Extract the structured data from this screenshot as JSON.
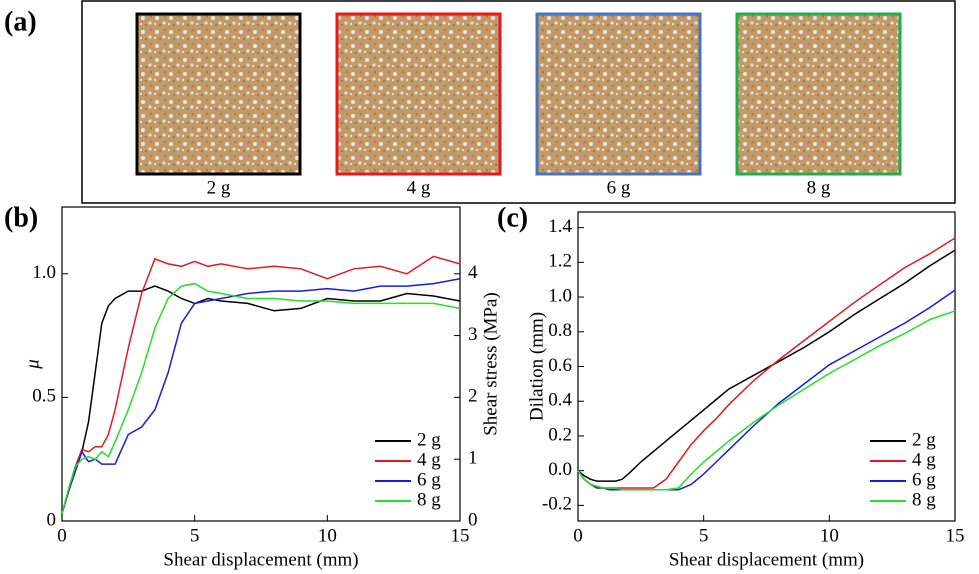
{
  "panel_a": {
    "panel_label": "(a)",
    "captions": [
      "2 g",
      "4 g",
      "6 g",
      "8 g"
    ],
    "colors": [
      "#000000",
      "#e8191d",
      "#4a72c0",
      "#1fae4a"
    ]
  },
  "chart_data": [
    {
      "type": "line",
      "panel_label": "(b)",
      "xlabel": "Shear displacement (mm)",
      "ylabel": "μ",
      "y2label": "Shear stress (MPa)",
      "xlim": [
        0,
        15
      ],
      "xticks": [
        0,
        5,
        10,
        15
      ],
      "ylim": [
        0,
        1.27
      ],
      "yticks": [
        0,
        0.5,
        {
          "value": 1,
          "label": "1.0"
        }
      ],
      "y2lim": [
        0,
        5.08
      ],
      "y2ticks": [
        0,
        1,
        2,
        3,
        4
      ],
      "legend": "lower right",
      "x": [
        0,
        0.25,
        0.5,
        0.75,
        1,
        1.25,
        1.5,
        1.75,
        2,
        2.5,
        3,
        3.5,
        4,
        4.5,
        5,
        5.5,
        6,
        7,
        8,
        9,
        10,
        11,
        12,
        13,
        14,
        15
      ],
      "series": [
        {
          "name": "2 g",
          "color": "#000000",
          "values": [
            0.03,
            0.12,
            0.22,
            0.28,
            0.4,
            0.6,
            0.8,
            0.87,
            0.9,
            0.93,
            0.93,
            0.95,
            0.93,
            0.9,
            0.88,
            0.9,
            0.89,
            0.88,
            0.85,
            0.86,
            0.9,
            0.89,
            0.89,
            0.92,
            0.91,
            0.89
          ]
        },
        {
          "name": "4 g",
          "color": "#e8191d",
          "values": [
            0.03,
            0.13,
            0.22,
            0.29,
            0.28,
            0.3,
            0.3,
            0.35,
            0.45,
            0.7,
            0.92,
            1.06,
            1.04,
            1.03,
            1.05,
            1.03,
            1.04,
            1.02,
            1.03,
            1.02,
            0.98,
            1.02,
            1.03,
            1.0,
            1.07,
            1.04
          ]
        },
        {
          "name": "6 g",
          "color": "#1a1ae6",
          "values": [
            0.03,
            0.12,
            0.2,
            0.28,
            0.24,
            0.25,
            0.23,
            0.23,
            0.23,
            0.35,
            0.38,
            0.45,
            0.6,
            0.8,
            0.88,
            0.89,
            0.9,
            0.92,
            0.93,
            0.93,
            0.94,
            0.93,
            0.95,
            0.95,
            0.96,
            0.98
          ]
        },
        {
          "name": "8 g",
          "color": "#22e022",
          "values": [
            0.03,
            0.13,
            0.22,
            0.25,
            0.26,
            0.25,
            0.28,
            0.26,
            0.32,
            0.45,
            0.6,
            0.78,
            0.9,
            0.95,
            0.96,
            0.93,
            0.92,
            0.9,
            0.9,
            0.89,
            0.89,
            0.88,
            0.88,
            0.88,
            0.88,
            0.86
          ]
        }
      ]
    },
    {
      "type": "line",
      "panel_label": "(c)",
      "xlabel": "Shear displacement (mm)",
      "ylabel": "Dilation (mm)",
      "xlim": [
        0,
        15
      ],
      "xticks": [
        0,
        5,
        10,
        15
      ],
      "ylim": [
        -0.29,
        1.49
      ],
      "yticks": [
        -0.2,
        {
          "value": 0,
          "label": "0.0"
        },
        0.2,
        0.4,
        0.6,
        0.8,
        {
          "value": 1,
          "label": "1.0"
        },
        1.2,
        1.4
      ],
      "legend": "lower right",
      "x": [
        0,
        0.25,
        0.5,
        0.75,
        1,
        1.25,
        1.5,
        1.75,
        2,
        2.5,
        3,
        3.5,
        4,
        4.5,
        5,
        5.5,
        6,
        7,
        8,
        9,
        10,
        11,
        12,
        13,
        14,
        15
      ],
      "series": [
        {
          "name": "2 g",
          "color": "#000000",
          "values": [
            0,
            -0.03,
            -0.05,
            -0.06,
            -0.06,
            -0.06,
            -0.06,
            -0.05,
            -0.02,
            0.05,
            0.11,
            0.17,
            0.23,
            0.29,
            0.35,
            0.41,
            0.47,
            0.55,
            0.63,
            0.71,
            0.8,
            0.9,
            0.99,
            1.08,
            1.18,
            1.27
          ]
        },
        {
          "name": "4 g",
          "color": "#e8191d",
          "values": [
            0,
            -0.05,
            -0.08,
            -0.09,
            -0.1,
            -0.1,
            -0.1,
            -0.1,
            -0.1,
            -0.1,
            -0.1,
            -0.05,
            0.05,
            0.15,
            0.23,
            0.3,
            0.38,
            0.52,
            0.64,
            0.75,
            0.86,
            0.97,
            1.07,
            1.17,
            1.25,
            1.34
          ]
        },
        {
          "name": "6 g",
          "color": "#1a1ae6",
          "values": [
            0,
            -0.05,
            -0.08,
            -0.1,
            -0.1,
            -0.11,
            -0.11,
            -0.11,
            -0.11,
            -0.11,
            -0.11,
            -0.11,
            -0.11,
            -0.08,
            -0.02,
            0.05,
            0.12,
            0.26,
            0.39,
            0.5,
            0.61,
            0.69,
            0.77,
            0.85,
            0.94,
            1.04
          ]
        },
        {
          "name": "8 g",
          "color": "#22e022",
          "values": [
            0,
            -0.05,
            -0.08,
            -0.09,
            -0.1,
            -0.1,
            -0.1,
            -0.11,
            -0.11,
            -0.11,
            -0.11,
            -0.11,
            -0.1,
            -0.02,
            0.05,
            0.11,
            0.17,
            0.28,
            0.38,
            0.47,
            0.56,
            0.64,
            0.72,
            0.79,
            0.87,
            0.92
          ]
        }
      ]
    }
  ]
}
